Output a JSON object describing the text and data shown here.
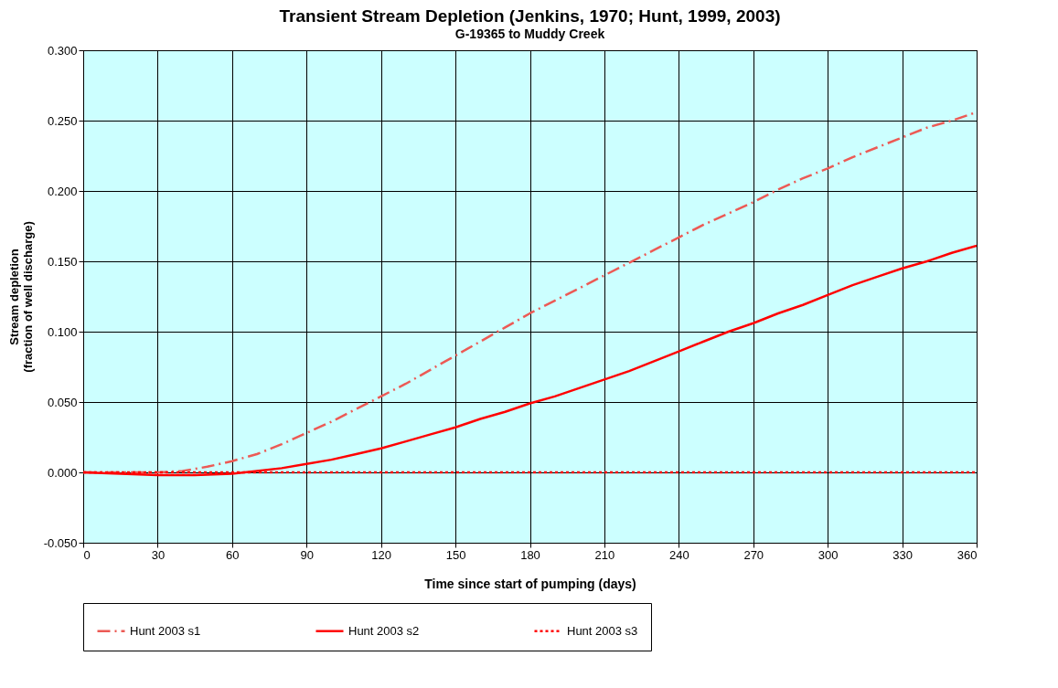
{
  "chart_data": {
    "type": "line",
    "title": "Transient Stream Depletion (Jenkins, 1970; Hunt, 1999, 2003)",
    "subtitle": "G-19365 to Muddy Creek",
    "xlabel": "Time since start of pumping (days)",
    "ylabel": "Stream depletion\n(fraction of well discharge)",
    "xlim": [
      0,
      360
    ],
    "xticks": [
      0,
      30,
      60,
      90,
      120,
      150,
      180,
      210,
      240,
      270,
      300,
      330,
      360
    ],
    "ylim": [
      -0.05,
      0.3
    ],
    "yticks": [
      {
        "value": -0.05,
        "label": "-0.050"
      },
      {
        "value": 0,
        "label": "0.000"
      },
      {
        "value": 0.05,
        "label": "0.050"
      },
      {
        "value": 0.1,
        "label": "0.100"
      },
      {
        "value": 0.15,
        "label": "0.150"
      },
      {
        "value": 0.2,
        "label": "0.200"
      },
      {
        "value": 0.25,
        "label": "0.250"
      },
      {
        "value": 0.3,
        "label": "0.300"
      }
    ],
    "grid": true,
    "legend": "bottom",
    "marker": "none",
    "series": [
      {
        "name": "Hunt 2003 s1",
        "color": "#ec5a55",
        "line_style": "dashed",
        "x": [
          0,
          30,
          40,
          50,
          60,
          70,
          80,
          90,
          100,
          110,
          120,
          130,
          140,
          150,
          160,
          170,
          180,
          190,
          200,
          210,
          220,
          230,
          240,
          250,
          260,
          270,
          280,
          290,
          300,
          310,
          320,
          330,
          340,
          350,
          360
        ],
        "values": [
          0,
          0,
          0.001,
          0.004,
          0.008,
          0.013,
          0.02,
          0.028,
          0.036,
          0.045,
          0.054,
          0.063,
          0.073,
          0.083,
          0.093,
          0.103,
          0.113,
          0.122,
          0.131,
          0.14,
          0.149,
          0.158,
          0.167,
          0.176,
          0.184,
          0.192,
          0.201,
          0.209,
          0.216,
          0.224,
          0.231,
          0.238,
          0.245,
          0.25,
          0.256
        ]
      },
      {
        "name": "Hunt 2003 s2",
        "color": "#ff0000",
        "line_style": "solid",
        "x": [
          0,
          30,
          45,
          60,
          70,
          80,
          90,
          100,
          110,
          120,
          130,
          140,
          150,
          160,
          170,
          180,
          190,
          200,
          210,
          220,
          230,
          240,
          250,
          260,
          270,
          280,
          290,
          300,
          310,
          320,
          330,
          340,
          350,
          360
        ],
        "values": [
          0,
          -0.002,
          -0.002,
          -0.001,
          0.001,
          0.003,
          0.006,
          0.009,
          0.013,
          0.017,
          0.022,
          0.027,
          0.032,
          0.038,
          0.043,
          0.049,
          0.054,
          0.06,
          0.066,
          0.072,
          0.079,
          0.086,
          0.093,
          0.1,
          0.106,
          0.113,
          0.119,
          0.126,
          0.133,
          0.139,
          0.145,
          0.15,
          0.156,
          0.161
        ]
      },
      {
        "name": "Hunt 2003 s3",
        "color": "#ff0000",
        "line_style": "dotted",
        "x": [
          0,
          360
        ],
        "values": [
          0,
          0
        ]
      }
    ]
  }
}
